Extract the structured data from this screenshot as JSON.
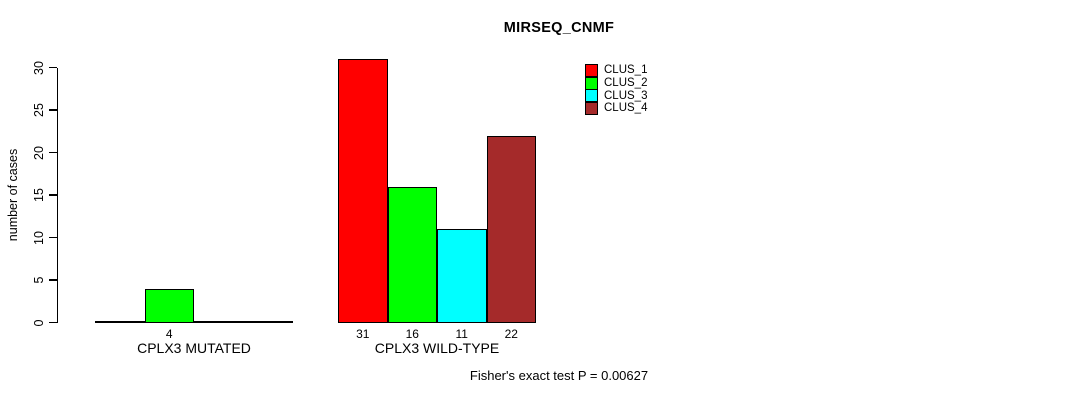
{
  "chart": {
    "title": "MIRSEQ_CNMF",
    "ylabel": "number of cases",
    "footnote": "Fisher's exact test P = 0.00627"
  },
  "chart_data": {
    "type": "bar",
    "title": "MIRSEQ_CNMF",
    "xlabel": "",
    "ylabel": "number of cases",
    "ylim": [
      0,
      30
    ],
    "yticks": [
      0,
      5,
      10,
      15,
      20,
      25,
      30
    ],
    "grid": false,
    "legend_position": "top-right-inside",
    "categories": [
      "CPLX3 MUTATED",
      "CPLX3 WILD-TYPE"
    ],
    "series": [
      {
        "name": "CLUS_1",
        "color": "#FF0000",
        "values": [
          0,
          31
        ]
      },
      {
        "name": "CLUS_2",
        "color": "#00FF00",
        "values": [
          4,
          16
        ]
      },
      {
        "name": "CLUS_3",
        "color": "#00FFFF",
        "values": [
          0,
          11
        ]
      },
      {
        "name": "CLUS_4",
        "color": "#A52A2A",
        "values": [
          0,
          22
        ]
      }
    ],
    "bar_value_labels": {
      "show": true,
      "nonzero_only": true
    },
    "annotation": "Fisher's exact test P = 0.00627"
  }
}
